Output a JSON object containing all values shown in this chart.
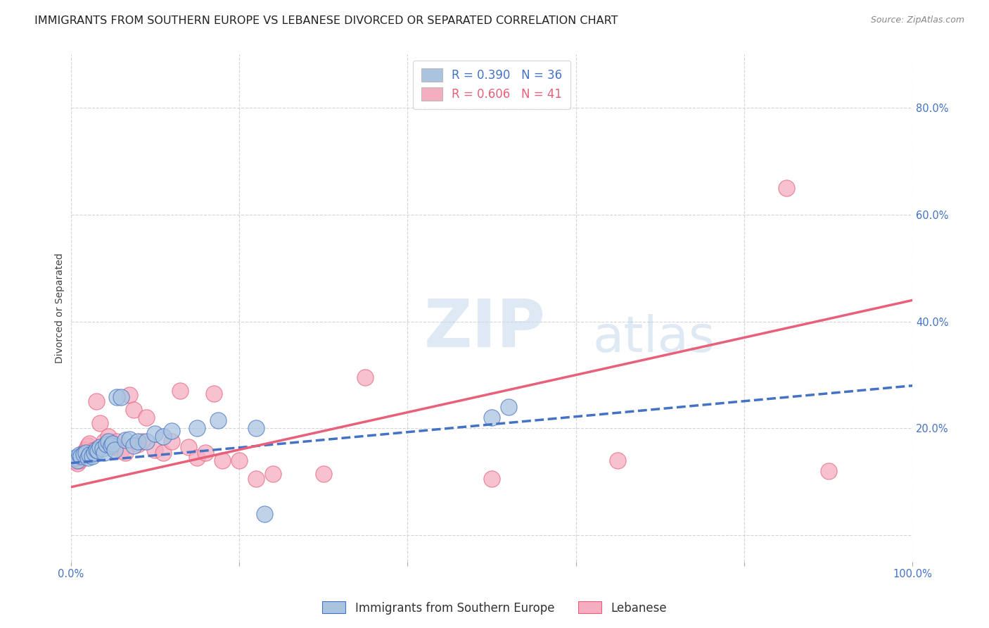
{
  "title": "IMMIGRANTS FROM SOUTHERN EUROPE VS LEBANESE DIVORCED OR SEPARATED CORRELATION CHART",
  "source": "Source: ZipAtlas.com",
  "ylabel": "Divorced or Separated",
  "xlim": [
    0.0,
    1.0
  ],
  "ylim": [
    -0.05,
    0.9
  ],
  "xticks": [
    0.0,
    0.2,
    0.4,
    0.6,
    0.8,
    1.0
  ],
  "yticks": [
    0.0,
    0.2,
    0.4,
    0.6,
    0.8
  ],
  "x_edge_labels": [
    "0.0%",
    "100.0%"
  ],
  "yticklabels": [
    "",
    "20.0%",
    "40.0%",
    "60.0%",
    "80.0%"
  ],
  "blue_R": 0.39,
  "blue_N": 36,
  "pink_R": 0.606,
  "pink_N": 41,
  "blue_color": "#aac4e0",
  "pink_color": "#f5adc0",
  "blue_line_color": "#4472c4",
  "pink_line_color": "#e8607a",
  "watermark_zip": "ZIP",
  "watermark_atlas": "atlas",
  "legend_entries": [
    "Immigrants from Southern Europe",
    "Lebanese"
  ],
  "blue_scatter_x": [
    0.005,
    0.008,
    0.01,
    0.012,
    0.015,
    0.018,
    0.02,
    0.022,
    0.025,
    0.028,
    0.03,
    0.032,
    0.035,
    0.038,
    0.04,
    0.042,
    0.045,
    0.048,
    0.05,
    0.052,
    0.055,
    0.06,
    0.065,
    0.07,
    0.075,
    0.08,
    0.09,
    0.1,
    0.11,
    0.12,
    0.15,
    0.175,
    0.22,
    0.23,
    0.5,
    0.52
  ],
  "blue_scatter_y": [
    0.145,
    0.14,
    0.15,
    0.148,
    0.152,
    0.155,
    0.145,
    0.15,
    0.148,
    0.155,
    0.16,
    0.158,
    0.165,
    0.162,
    0.155,
    0.17,
    0.175,
    0.168,
    0.172,
    0.16,
    0.258,
    0.258,
    0.178,
    0.18,
    0.168,
    0.175,
    0.175,
    0.19,
    0.185,
    0.195,
    0.2,
    0.215,
    0.2,
    0.04,
    0.22,
    0.24
  ],
  "pink_scatter_x": [
    0.005,
    0.008,
    0.01,
    0.012,
    0.015,
    0.018,
    0.02,
    0.022,
    0.025,
    0.028,
    0.03,
    0.035,
    0.04,
    0.045,
    0.05,
    0.055,
    0.06,
    0.065,
    0.07,
    0.075,
    0.08,
    0.085,
    0.09,
    0.1,
    0.11,
    0.12,
    0.13,
    0.14,
    0.15,
    0.16,
    0.17,
    0.18,
    0.2,
    0.22,
    0.24,
    0.3,
    0.35,
    0.5,
    0.65,
    0.85,
    0.9
  ],
  "pink_scatter_y": [
    0.138,
    0.135,
    0.14,
    0.148,
    0.155,
    0.16,
    0.168,
    0.172,
    0.155,
    0.16,
    0.25,
    0.21,
    0.175,
    0.185,
    0.165,
    0.175,
    0.158,
    0.155,
    0.262,
    0.235,
    0.17,
    0.175,
    0.22,
    0.16,
    0.155,
    0.175,
    0.27,
    0.165,
    0.145,
    0.155,
    0.265,
    0.14,
    0.14,
    0.105,
    0.115,
    0.115,
    0.295,
    0.105,
    0.14,
    0.65,
    0.12
  ],
  "blue_line_y_start": 0.135,
  "blue_line_y_end": 0.28,
  "pink_line_y_start": 0.09,
  "pink_line_y_end": 0.44,
  "background_color": "#ffffff",
  "grid_color": "#d0d0d0",
  "title_fontsize": 11.5,
  "source_fontsize": 9,
  "axis_label_fontsize": 10,
  "tick_fontsize": 10.5,
  "legend_fontsize": 12
}
